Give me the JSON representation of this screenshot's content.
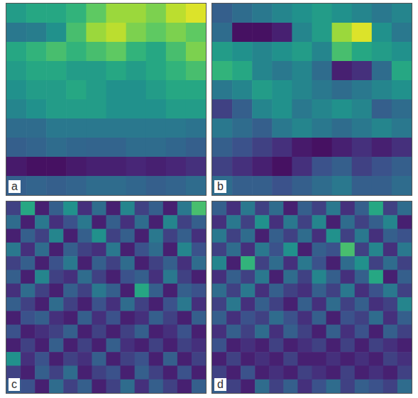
{
  "chart_data": [
    {
      "type": "heatmap",
      "title": "a",
      "color": "viridis",
      "color_range": [
        0,
        1
      ],
      "tick_labels": false,
      "xlim": [
        0,
        10
      ],
      "ylim": [
        0,
        10
      ],
      "cells": [
        [
          0.55,
          0.6,
          0.6,
          0.65,
          0.75,
          0.85,
          0.85,
          0.8,
          0.9,
          0.95
        ],
        [
          0.4,
          0.42,
          0.5,
          0.7,
          0.85,
          0.9,
          0.8,
          0.75,
          0.8,
          0.75
        ],
        [
          0.6,
          0.65,
          0.7,
          0.65,
          0.7,
          0.75,
          0.65,
          0.6,
          0.7,
          0.8
        ],
        [
          0.55,
          0.6,
          0.6,
          0.55,
          0.55,
          0.6,
          0.55,
          0.6,
          0.65,
          0.7
        ],
        [
          0.5,
          0.55,
          0.55,
          0.6,
          0.55,
          0.5,
          0.5,
          0.55,
          0.6,
          0.6
        ],
        [
          0.45,
          0.5,
          0.55,
          0.55,
          0.55,
          0.5,
          0.5,
          0.5,
          0.55,
          0.55
        ],
        [
          0.35,
          0.35,
          0.4,
          0.4,
          0.4,
          0.4,
          0.4,
          0.4,
          0.4,
          0.38
        ],
        [
          0.3,
          0.32,
          0.35,
          0.33,
          0.32,
          0.32,
          0.35,
          0.35,
          0.33,
          0.3
        ],
        [
          0.08,
          0.05,
          0.05,
          0.08,
          0.1,
          0.1,
          0.12,
          0.1,
          0.12,
          0.15
        ],
        [
          0.3,
          0.32,
          0.3,
          0.32,
          0.35,
          0.35,
          0.33,
          0.3,
          0.32,
          0.35
        ]
      ]
    },
    {
      "type": "heatmap",
      "title": "b",
      "color": "viridis",
      "color_range": [
        0,
        1
      ],
      "tick_labels": false,
      "xlim": [
        0,
        10
      ],
      "ylim": [
        0,
        10
      ],
      "cells": [
        [
          0.3,
          0.35,
          0.4,
          0.45,
          0.5,
          0.55,
          0.5,
          0.45,
          0.4,
          0.45
        ],
        [
          0.35,
          0.05,
          0.05,
          0.1,
          0.45,
          0.55,
          0.85,
          0.95,
          0.5,
          0.4
        ],
        [
          0.55,
          0.5,
          0.45,
          0.5,
          0.55,
          0.45,
          0.7,
          0.6,
          0.55,
          0.5
        ],
        [
          0.65,
          0.6,
          0.45,
          0.4,
          0.45,
          0.35,
          0.1,
          0.15,
          0.35,
          0.6
        ],
        [
          0.4,
          0.45,
          0.55,
          0.5,
          0.45,
          0.4,
          0.35,
          0.4,
          0.45,
          0.5
        ],
        [
          0.2,
          0.3,
          0.45,
          0.5,
          0.4,
          0.45,
          0.5,
          0.45,
          0.3,
          0.35
        ],
        [
          0.4,
          0.35,
          0.3,
          0.4,
          0.45,
          0.4,
          0.35,
          0.4,
          0.45,
          0.4
        ],
        [
          0.3,
          0.25,
          0.2,
          0.15,
          0.08,
          0.05,
          0.1,
          0.15,
          0.1,
          0.15
        ],
        [
          0.2,
          0.15,
          0.1,
          0.05,
          0.15,
          0.25,
          0.3,
          0.2,
          0.25,
          0.3
        ],
        [
          0.35,
          0.3,
          0.3,
          0.25,
          0.3,
          0.35,
          0.4,
          0.3,
          0.3,
          0.35
        ]
      ]
    },
    {
      "type": "heatmap",
      "title": "c",
      "color": "viridis",
      "color_range": [
        0,
        1
      ],
      "tick_labels": false,
      "xlim": [
        0,
        14
      ],
      "ylim": [
        0,
        14
      ],
      "cells": [
        [
          0.2,
          0.6,
          0.1,
          0.3,
          0.5,
          0.15,
          0.35,
          0.1,
          0.45,
          0.2,
          0.3,
          0.1,
          0.4,
          0.7
        ],
        [
          0.35,
          0.1,
          0.4,
          0.15,
          0.25,
          0.4,
          0.1,
          0.3,
          0.15,
          0.35,
          0.1,
          0.45,
          0.2,
          0.3
        ],
        [
          0.1,
          0.3,
          0.2,
          0.45,
          0.1,
          0.3,
          0.5,
          0.2,
          0.3,
          0.1,
          0.4,
          0.2,
          0.3,
          0.15
        ],
        [
          0.4,
          0.15,
          0.35,
          0.1,
          0.3,
          0.2,
          0.15,
          0.4,
          0.1,
          0.25,
          0.35,
          0.1,
          0.45,
          0.25
        ],
        [
          0.2,
          0.3,
          0.1,
          0.25,
          0.4,
          0.1,
          0.3,
          0.2,
          0.35,
          0.1,
          0.2,
          0.3,
          0.15,
          0.35
        ],
        [
          0.3,
          0.1,
          0.45,
          0.2,
          0.15,
          0.35,
          0.2,
          0.1,
          0.25,
          0.3,
          0.15,
          0.4,
          0.2,
          0.1
        ],
        [
          0.15,
          0.35,
          0.2,
          0.1,
          0.3,
          0.2,
          0.4,
          0.3,
          0.1,
          0.6,
          0.3,
          0.1,
          0.3,
          0.25
        ],
        [
          0.3,
          0.2,
          0.1,
          0.35,
          0.2,
          0.1,
          0.25,
          0.15,
          0.35,
          0.2,
          0.1,
          0.25,
          0.4,
          0.15
        ],
        [
          0.1,
          0.25,
          0.3,
          0.15,
          0.1,
          0.3,
          0.15,
          0.25,
          0.1,
          0.15,
          0.3,
          0.2,
          0.1,
          0.3
        ],
        [
          0.25,
          0.1,
          0.15,
          0.2,
          0.3,
          0.1,
          0.2,
          0.1,
          0.2,
          0.3,
          0.1,
          0.15,
          0.25,
          0.1
        ],
        [
          0.1,
          0.2,
          0.1,
          0.3,
          0.1,
          0.2,
          0.1,
          0.3,
          0.15,
          0.1,
          0.2,
          0.1,
          0.2,
          0.15
        ],
        [
          0.5,
          0.15,
          0.25,
          0.1,
          0.2,
          0.15,
          0.3,
          0.1,
          0.2,
          0.25,
          0.1,
          0.3,
          0.1,
          0.2
        ],
        [
          0.2,
          0.1,
          0.3,
          0.2,
          0.35,
          0.1,
          0.2,
          0.25,
          0.1,
          0.3,
          0.2,
          0.1,
          0.25,
          0.1
        ],
        [
          0.3,
          0.25,
          0.1,
          0.35,
          0.2,
          0.3,
          0.1,
          0.2,
          0.35,
          0.15,
          0.3,
          0.2,
          0.1,
          0.3
        ]
      ]
    },
    {
      "type": "heatmap",
      "title": "d",
      "color": "viridis",
      "color_range": [
        0,
        1
      ],
      "tick_labels": false,
      "xlim": [
        0,
        14
      ],
      "ylim": [
        0,
        14
      ],
      "cells": [
        [
          0.3,
          0.15,
          0.4,
          0.2,
          0.35,
          0.1,
          0.3,
          0.2,
          0.4,
          0.15,
          0.3,
          0.6,
          0.2,
          0.35
        ],
        [
          0.15,
          0.4,
          0.2,
          0.5,
          0.15,
          0.4,
          0.2,
          0.45,
          0.1,
          0.35,
          0.2,
          0.3,
          0.45,
          0.1
        ],
        [
          0.4,
          0.2,
          0.35,
          0.1,
          0.3,
          0.2,
          0.35,
          0.15,
          0.5,
          0.2,
          0.4,
          0.15,
          0.3,
          0.25
        ],
        [
          0.2,
          0.35,
          0.15,
          0.4,
          0.25,
          0.5,
          0.1,
          0.3,
          0.25,
          0.7,
          0.2,
          0.45,
          0.15,
          0.4
        ],
        [
          0.45,
          0.1,
          0.65,
          0.2,
          0.35,
          0.15,
          0.4,
          0.25,
          0.1,
          0.35,
          0.5,
          0.2,
          0.35,
          0.2
        ],
        [
          0.15,
          0.3,
          0.2,
          0.4,
          0.1,
          0.35,
          0.2,
          0.45,
          0.3,
          0.15,
          0.3,
          0.6,
          0.1,
          0.3
        ],
        [
          0.35,
          0.2,
          0.4,
          0.15,
          0.3,
          0.2,
          0.15,
          0.3,
          0.2,
          0.4,
          0.15,
          0.25,
          0.4,
          0.2
        ],
        [
          0.2,
          0.4,
          0.15,
          0.3,
          0.2,
          0.1,
          0.3,
          0.15,
          0.35,
          0.2,
          0.3,
          0.15,
          0.2,
          0.45
        ],
        [
          0.3,
          0.15,
          0.25,
          0.2,
          0.35,
          0.25,
          0.15,
          0.3,
          0.1,
          0.25,
          0.2,
          0.35,
          0.15,
          0.3
        ],
        [
          0.15,
          0.3,
          0.2,
          0.35,
          0.15,
          0.3,
          0.2,
          0.1,
          0.3,
          0.15,
          0.25,
          0.1,
          0.3,
          0.2
        ],
        [
          0.25,
          0.1,
          0.15,
          0.1,
          0.2,
          0.1,
          0.15,
          0.2,
          0.1,
          0.2,
          0.1,
          0.2,
          0.15,
          0.1
        ],
        [
          0.1,
          0.2,
          0.1,
          0.15,
          0.1,
          0.2,
          0.1,
          0.1,
          0.15,
          0.1,
          0.15,
          0.1,
          0.2,
          0.15
        ],
        [
          0.2,
          0.1,
          0.25,
          0.1,
          0.15,
          0.1,
          0.2,
          0.15,
          0.1,
          0.2,
          0.1,
          0.15,
          0.1,
          0.2
        ],
        [
          0.3,
          0.2,
          0.1,
          0.35,
          0.2,
          0.3,
          0.15,
          0.25,
          0.35,
          0.2,
          0.3,
          0.25,
          0.2,
          0.35
        ]
      ]
    }
  ]
}
